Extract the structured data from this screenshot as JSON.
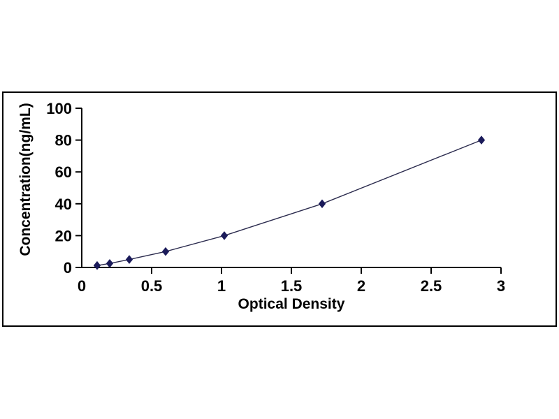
{
  "chart_data": {
    "type": "line",
    "title": "",
    "xlabel": "Optical Density",
    "ylabel": "Concentration(ng/mL)",
    "x": [
      0.11,
      0.2,
      0.34,
      0.6,
      1.02,
      1.72,
      2.86
    ],
    "y": [
      1.25,
      2.5,
      5,
      10,
      20,
      40,
      80
    ],
    "xlim": [
      0,
      3
    ],
    "ylim": [
      0,
      100
    ],
    "x_ticks": [
      0,
      0.5,
      1,
      1.5,
      2,
      2.5,
      3
    ],
    "x_tick_labels": [
      "0",
      "0.5",
      "1",
      "1.5",
      "2",
      "2.5",
      "3"
    ],
    "y_ticks": [
      0,
      20,
      40,
      60,
      80,
      100
    ],
    "y_tick_labels": [
      "0",
      "20",
      "40",
      "60",
      "80",
      "100"
    ],
    "grid": false,
    "legend_position": "none",
    "marker": "diamond",
    "colors": {
      "line": "#2b2b4e",
      "marker": "#1b1b5a",
      "axis": "#000000",
      "frame_border": "#000000",
      "text": "#000000",
      "background": "#ffffff"
    }
  }
}
